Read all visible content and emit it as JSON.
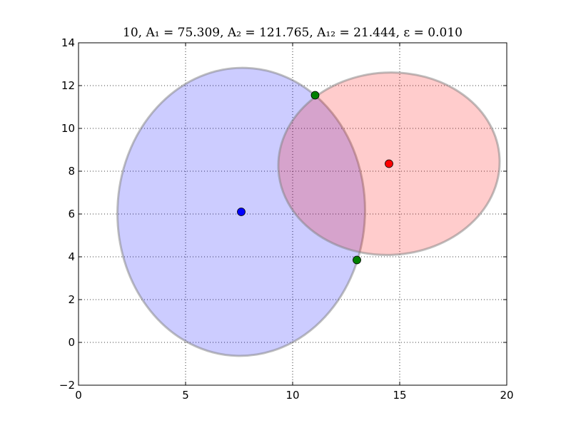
{
  "chart_data": {
    "type": "scatter",
    "title": "10,   A₁ = 75.309,   A₂ = 121.765,   A₁₂ = 21.444,   ε = 0.010",
    "xlabel": "",
    "ylabel": "",
    "xlim": [
      0,
      20
    ],
    "ylim": [
      -2,
      14
    ],
    "x_ticks": [
      0,
      5,
      10,
      15,
      20
    ],
    "y_ticks": [
      -2,
      0,
      2,
      4,
      6,
      8,
      10,
      12,
      14
    ],
    "grid": true,
    "grid_style": "dotted",
    "ellipses": [
      {
        "center": [
          7.6,
          6.1
        ],
        "semi_axes": [
          5.78,
          6.73
        ],
        "rotation_deg": 2,
        "fill": "#0000ff",
        "fill_opacity": 0.2,
        "edge": "#808080"
      },
      {
        "center": [
          14.5,
          8.35
        ],
        "semi_axes": [
          5.17,
          4.26
        ],
        "rotation_deg": -3,
        "fill": "#ff0000",
        "fill_opacity": 0.2,
        "edge": "#808080"
      }
    ],
    "series": [
      {
        "color": "#0000ff",
        "points": [
          [
            7.6,
            6.1
          ]
        ]
      },
      {
        "color": "#ff0000",
        "points": [
          [
            14.5,
            8.35
          ]
        ]
      },
      {
        "color": "#008000",
        "points": [
          [
            11.05,
            11.55
          ],
          [
            13.0,
            3.85
          ]
        ]
      }
    ]
  }
}
